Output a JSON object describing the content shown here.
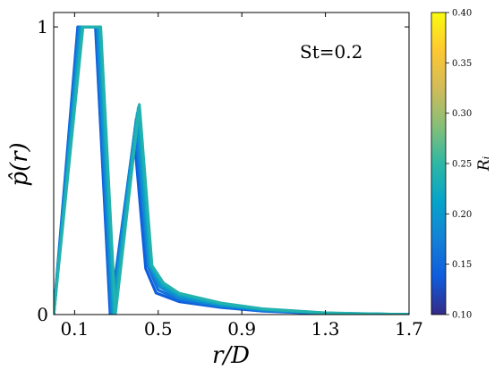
{
  "chart_data": {
    "type": "line",
    "annotation": "St=0.2",
    "xlabel": "r/D",
    "ylabel": "p̂(r)",
    "xlim": [
      0.0,
      1.7
    ],
    "ylim": [
      0,
      1.05
    ],
    "x_ticks": [
      {
        "value": 0.1,
        "label": "0.1"
      },
      {
        "value": 0.5,
        "label": "0.5"
      },
      {
        "value": 0.9,
        "label": "0.9"
      },
      {
        "value": 1.3,
        "label": "1.3"
      },
      {
        "value": 1.7,
        "label": "1.7"
      }
    ],
    "y_ticks": [
      {
        "value": 0,
        "label": "0"
      },
      {
        "value": 1,
        "label": "1"
      }
    ],
    "colorbar": {
      "label": "Rᵢ",
      "range": [
        0.1,
        0.4
      ],
      "ticks": [
        "0.10",
        "0.15",
        "0.20",
        "0.25",
        "0.30",
        "0.35",
        "0.40"
      ],
      "colormap": [
        "#352a87",
        "#0f5cdd",
        "#1481d6",
        "#06a4ca",
        "#2eb7a4",
        "#87bf77",
        "#d1bb59",
        "#fec832",
        "#f9fb0e"
      ]
    },
    "curve_shape": {
      "x": [
        0.0,
        0.12,
        0.21,
        0.28,
        0.4,
        0.46,
        0.5,
        0.6,
        0.8,
        1.0,
        1.3,
        1.7
      ],
      "y": [
        0,
        1,
        1,
        0,
        0.72,
        0.17,
        0.1,
        0.07,
        0.037,
        0.018,
        0.005,
        0
      ]
    },
    "series": [
      {
        "ri": 0.14,
        "x": [
          0.0,
          0.115,
          0.2,
          0.27,
          0.385,
          0.44,
          0.49,
          0.6,
          0.8,
          1.0,
          1.3,
          1.7
        ],
        "y": [
          0,
          1,
          1,
          0,
          0.62,
          0.16,
          0.075,
          0.045,
          0.025,
          0.012,
          0.003,
          0
        ]
      },
      {
        "ri": 0.16,
        "x": [
          0.0,
          0.12,
          0.205,
          0.275,
          0.39,
          0.45,
          0.5,
          0.6,
          0.8,
          1.0,
          1.3,
          1.7
        ],
        "y": [
          0,
          1,
          1,
          0,
          0.65,
          0.17,
          0.085,
          0.052,
          0.028,
          0.014,
          0.004,
          0
        ]
      },
      {
        "ri": 0.18,
        "x": [
          0.0,
          0.125,
          0.21,
          0.28,
          0.395,
          0.455,
          0.51,
          0.6,
          0.8,
          1.0,
          1.3,
          1.7
        ],
        "y": [
          0,
          1,
          1,
          0,
          0.68,
          0.17,
          0.095,
          0.058,
          0.031,
          0.016,
          0.004,
          0
        ]
      },
      {
        "ri": 0.2,
        "x": [
          0.0,
          0.13,
          0.215,
          0.285,
          0.4,
          0.46,
          0.515,
          0.6,
          0.8,
          1.0,
          1.3,
          1.7
        ],
        "y": [
          0,
          1,
          1,
          0,
          0.7,
          0.17,
          0.1,
          0.064,
          0.034,
          0.017,
          0.005,
          0
        ]
      },
      {
        "ri": 0.22,
        "x": [
          0.0,
          0.135,
          0.22,
          0.29,
          0.405,
          0.465,
          0.52,
          0.6,
          0.8,
          1.0,
          1.3,
          1.7
        ],
        "y": [
          0,
          1,
          1,
          0,
          0.72,
          0.17,
          0.105,
          0.07,
          0.037,
          0.019,
          0.005,
          0
        ]
      },
      {
        "ri": 0.24,
        "x": [
          0.0,
          0.14,
          0.225,
          0.295,
          0.41,
          0.47,
          0.525,
          0.6,
          0.8,
          1.0,
          1.3,
          1.7
        ],
        "y": [
          0,
          1,
          1,
          0,
          0.73,
          0.17,
          0.11,
          0.074,
          0.04,
          0.02,
          0.006,
          0
        ]
      }
    ]
  }
}
